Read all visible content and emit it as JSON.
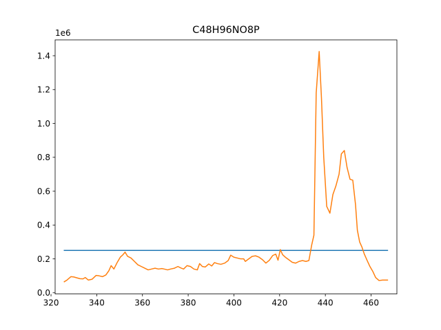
{
  "chart_data": {
    "type": "line",
    "title": "C48H96NO8P",
    "xlabel": "",
    "ylabel": "",
    "y_offset_label": "1e6",
    "xlim": [
      321.8,
      471.3
    ],
    "ylim": [
      -0.0073,
      1.4935
    ],
    "x_ticks": [
      320,
      340,
      360,
      380,
      400,
      420,
      440,
      460
    ],
    "y_ticks": [
      0.0,
      0.2,
      0.4,
      0.6,
      0.8,
      1.0,
      1.2,
      1.4
    ],
    "y_tick_labels": [
      "0.0",
      "0.2",
      "0.4",
      "0.6",
      "0.8",
      "1.0",
      "1.2",
      "1.4"
    ],
    "grid": false,
    "series": [
      {
        "color": "#1f77b4",
        "x": [
          325.8,
          467.2
        ],
        "y": [
          0.25,
          0.25
        ]
      },
      {
        "color": "#ff7f0e",
        "x": [
          325.8,
          327.0,
          328.7,
          330.0,
          331.3,
          332.7,
          334.0,
          335.0,
          336.3,
          338.0,
          339.7,
          341.0,
          342.5,
          344.0,
          345.3,
          346.3,
          347.5,
          349.0,
          350.3,
          351.5,
          352.4,
          353.5,
          355.0,
          356.5,
          358.0,
          359.5,
          361.0,
          362.5,
          364.0,
          365.5,
          367.0,
          368.5,
          369.5,
          371.0,
          372.3,
          374.0,
          375.5,
          377.0,
          378.0,
          379.5,
          381.0,
          382.5,
          384.0,
          385.0,
          386.2,
          387.5,
          389.0,
          390.3,
          391.5,
          392.8,
          394.3,
          396.0,
          397.5,
          398.6,
          400.0,
          401.5,
          403.0,
          404.3,
          405.0,
          406.3,
          408.0,
          409.5,
          411.0,
          412.5,
          414.0,
          415.5,
          417.0,
          418.3,
          419.3,
          420.3,
          421.3,
          422.5,
          424.0,
          425.5,
          427.0,
          428.5,
          430.0,
          431.5,
          432.8,
          434.0,
          435.0,
          436.0,
          437.3,
          438.3,
          439.3,
          440.6,
          442.0,
          443.3,
          444.6,
          446.0,
          447.0,
          448.3,
          449.5,
          450.8,
          452.0,
          453.2,
          454.0,
          455.0,
          456.0,
          457.0,
          458.3,
          459.5,
          460.8,
          462.0,
          463.5,
          465.0,
          466.2,
          467.2
        ],
        "y": [
          0.065,
          0.075,
          0.095,
          0.093,
          0.088,
          0.083,
          0.082,
          0.09,
          0.075,
          0.08,
          0.102,
          0.1,
          0.095,
          0.105,
          0.13,
          0.16,
          0.14,
          0.18,
          0.21,
          0.225,
          0.24,
          0.215,
          0.205,
          0.185,
          0.165,
          0.155,
          0.145,
          0.135,
          0.14,
          0.145,
          0.14,
          0.143,
          0.14,
          0.135,
          0.14,
          0.145,
          0.155,
          0.145,
          0.14,
          0.16,
          0.155,
          0.14,
          0.135,
          0.172,
          0.155,
          0.152,
          0.17,
          0.158,
          0.178,
          0.172,
          0.168,
          0.175,
          0.19,
          0.222,
          0.21,
          0.205,
          0.2,
          0.2,
          0.185,
          0.198,
          0.215,
          0.218,
          0.21,
          0.195,
          0.175,
          0.192,
          0.22,
          0.228,
          0.192,
          0.255,
          0.225,
          0.21,
          0.195,
          0.18,
          0.175,
          0.185,
          0.19,
          0.185,
          0.19,
          0.28,
          0.34,
          1.18,
          1.425,
          1.15,
          0.8,
          0.51,
          0.47,
          0.58,
          0.63,
          0.7,
          0.82,
          0.84,
          0.74,
          0.67,
          0.665,
          0.52,
          0.37,
          0.3,
          0.27,
          0.23,
          0.19,
          0.155,
          0.125,
          0.09,
          0.072,
          0.075,
          0.075,
          0.075
        ]
      }
    ]
  }
}
